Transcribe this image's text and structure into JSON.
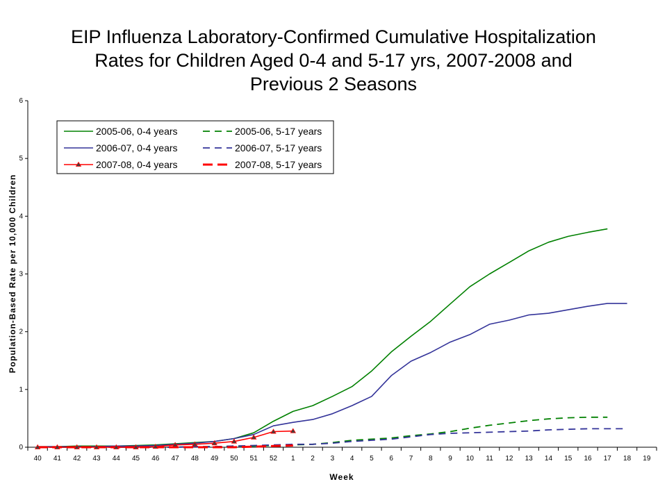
{
  "chart_data": {
    "type": "line",
    "title": [
      "EIP Influenza Laboratory-Confirmed Cumulative Hospitalization",
      "Rates for Children Aged 0-4 and 5-17 yrs, 2007-2008 and",
      "Previous 2 Seasons"
    ],
    "xlabel": "Week",
    "ylabel": "Population-Based Rate per 10,000 Children",
    "categories": [
      "40",
      "41",
      "42",
      "43",
      "44",
      "45",
      "46",
      "47",
      "48",
      "49",
      "50",
      "51",
      "52",
      "1",
      "2",
      "3",
      "4",
      "5",
      "6",
      "7",
      "8",
      "9",
      "10",
      "11",
      "12",
      "13",
      "14",
      "15",
      "16",
      "17",
      "18",
      "19"
    ],
    "ylim": [
      0,
      6
    ],
    "yticks": [
      "0",
      "1",
      "2",
      "3",
      "4",
      "5",
      "6"
    ],
    "grid": false,
    "legend_position": "top-left",
    "series": [
      {
        "name": "2005-06, 0-4 years",
        "color": "#008000",
        "dash": "solid",
        "marker": "none",
        "values": [
          0.01,
          0.01,
          0.02,
          0.02,
          0.02,
          0.03,
          0.04,
          0.06,
          0.08,
          0.1,
          0.15,
          0.25,
          0.45,
          0.62,
          0.72,
          0.88,
          1.05,
          1.32,
          1.65,
          1.92,
          2.18,
          2.48,
          2.78,
          3.0,
          3.2,
          3.4,
          3.55,
          3.65,
          3.72,
          3.78,
          null,
          null
        ]
      },
      {
        "name": "2005-06, 5-17 years",
        "color": "#008000",
        "dash": "dash",
        "marker": "none",
        "values": [
          0.0,
          0.0,
          0.0,
          0.0,
          0.0,
          0.0,
          0.0,
          0.0,
          0.01,
          0.01,
          0.02,
          0.02,
          0.03,
          0.04,
          0.05,
          0.08,
          0.12,
          0.14,
          0.16,
          0.2,
          0.23,
          0.27,
          0.33,
          0.38,
          0.42,
          0.46,
          0.49,
          0.51,
          0.52,
          0.52,
          null,
          null
        ]
      },
      {
        "name": "2006-07, 0-4 years",
        "color": "#333399",
        "dash": "solid",
        "marker": "none",
        "values": [
          0.01,
          0.01,
          0.01,
          0.01,
          0.02,
          0.02,
          0.03,
          0.05,
          0.07,
          0.1,
          0.15,
          0.22,
          0.37,
          0.43,
          0.48,
          0.58,
          0.72,
          0.88,
          1.24,
          1.49,
          1.64,
          1.82,
          1.95,
          2.13,
          2.2,
          2.29,
          2.32,
          2.38,
          2.44,
          2.49,
          2.49,
          null
        ]
      },
      {
        "name": "2006-07, 5-17 years",
        "color": "#333399",
        "dash": "dash",
        "marker": "none",
        "values": [
          0.0,
          0.0,
          0.0,
          0.0,
          0.0,
          0.0,
          0.0,
          0.0,
          0.01,
          0.01,
          0.02,
          0.03,
          0.04,
          0.05,
          0.05,
          0.07,
          0.1,
          0.12,
          0.14,
          0.18,
          0.22,
          0.24,
          0.25,
          0.26,
          0.27,
          0.28,
          0.3,
          0.31,
          0.32,
          0.32,
          0.32,
          null
        ]
      },
      {
        "name": "2007-08, 0-4 years",
        "color": "#ff0000",
        "dash": "solid",
        "marker": "triangle",
        "values": [
          0.0,
          0.0,
          0.0,
          0.0,
          0.0,
          0.0,
          0.01,
          0.04,
          0.05,
          0.07,
          0.1,
          0.17,
          0.27,
          0.28,
          null,
          null,
          null,
          null,
          null,
          null,
          null,
          null,
          null,
          null,
          null,
          null,
          null,
          null,
          null,
          null,
          null,
          null
        ]
      },
      {
        "name": "2007-08, 5-17 years",
        "color": "#ff0000",
        "dash": "longdash",
        "marker": "none",
        "values": [
          0.0,
          0.0,
          0.0,
          0.0,
          0.0,
          0.0,
          0.0,
          0.0,
          0.0,
          0.0,
          0.0,
          0.01,
          0.02,
          0.03,
          null,
          null,
          null,
          null,
          null,
          null,
          null,
          null,
          null,
          null,
          null,
          null,
          null,
          null,
          null,
          null,
          null,
          null
        ]
      }
    ]
  }
}
